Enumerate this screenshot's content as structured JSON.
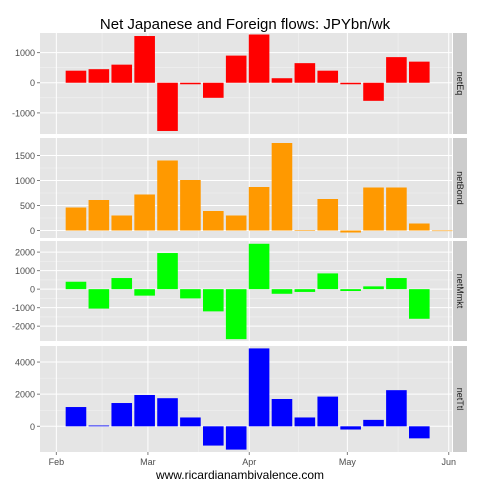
{
  "chart_data": {
    "type": "bar",
    "title": "Net Japanese and Foreign flows: JPYbn/wk",
    "caption": "www.ricardianambivalence.com",
    "x_ticks": [
      {
        "label": "Feb",
        "date": "2013-02-01"
      },
      {
        "label": "Mar",
        "date": "2013-03-01"
      },
      {
        "label": "Apr",
        "date": "2013-04-01"
      },
      {
        "label": "May",
        "date": "2013-05-01"
      },
      {
        "label": "Jun",
        "date": "2013-06-01"
      }
    ],
    "xlim": [
      "2013-01-27",
      "2013-06-02"
    ],
    "panels": [
      {
        "name": "netEq",
        "color": "#ff0000",
        "ylim": [
          -1700,
          1650
        ],
        "yticks": [
          -1000,
          0,
          1000
        ],
        "ytick_labels": [
          "-1000",
          "0",
          "1000"
        ],
        "x": [
          "2013-02-07",
          "2013-02-14",
          "2013-02-21",
          "2013-02-28",
          "2013-03-07",
          "2013-03-14",
          "2013-03-21",
          "2013-03-28",
          "2013-04-04",
          "2013-04-11",
          "2013-04-18",
          "2013-04-25",
          "2013-05-02",
          "2013-05-09",
          "2013-05-16",
          "2013-05-23"
        ],
        "values": [
          400,
          450,
          600,
          1550,
          -1600,
          -50,
          -500,
          900,
          1600,
          150,
          650,
          400,
          -50,
          -600,
          850,
          700
        ]
      },
      {
        "name": "netBond",
        "color": "#ff9900",
        "ylim": [
          -150,
          1850
        ],
        "yticks": [
          0,
          500,
          1000,
          1500
        ],
        "ytick_labels": [
          "0",
          "500",
          "1000",
          "1500"
        ],
        "x": [
          "2013-02-07",
          "2013-02-14",
          "2013-02-21",
          "2013-02-28",
          "2013-03-07",
          "2013-03-14",
          "2013-03-21",
          "2013-03-28",
          "2013-04-04",
          "2013-04-11",
          "2013-04-18",
          "2013-04-25",
          "2013-05-02",
          "2013-05-09",
          "2013-05-16",
          "2013-05-23",
          "2013-05-30"
        ],
        "values": [
          460,
          610,
          300,
          720,
          1400,
          1010,
          390,
          300,
          870,
          1750,
          10,
          630,
          -40,
          860,
          860,
          140,
          0
        ]
      },
      {
        "name": "netMmkt",
        "color": "#00ff00",
        "ylim": [
          -2800,
          2600
        ],
        "yticks": [
          -2000,
          -1000,
          0,
          1000,
          2000
        ],
        "ytick_labels": [
          "-2000",
          "-1000",
          "0",
          "1000",
          "2000"
        ],
        "x": [
          "2013-02-07",
          "2013-02-14",
          "2013-02-21",
          "2013-02-28",
          "2013-03-07",
          "2013-03-14",
          "2013-03-21",
          "2013-03-28",
          "2013-04-04",
          "2013-04-11",
          "2013-04-18",
          "2013-04-25",
          "2013-05-02",
          "2013-05-09",
          "2013-05-16",
          "2013-05-23"
        ],
        "values": [
          400,
          -1050,
          600,
          -350,
          1950,
          -500,
          -1200,
          -2700,
          2450,
          -250,
          -150,
          850,
          -100,
          150,
          600,
          -1600
        ]
      },
      {
        "name": "netTtl",
        "color": "#0000ff",
        "ylim": [
          -1600,
          5000
        ],
        "yticks": [
          0,
          2000,
          4000
        ],
        "ytick_labels": [
          "0",
          "2000",
          "4000"
        ],
        "x": [
          "2013-02-07",
          "2013-02-14",
          "2013-02-21",
          "2013-02-28",
          "2013-03-07",
          "2013-03-14",
          "2013-03-21",
          "2013-03-28",
          "2013-04-04",
          "2013-04-11",
          "2013-04-18",
          "2013-04-25",
          "2013-05-02",
          "2013-05-09",
          "2013-05-16",
          "2013-05-23"
        ],
        "values": [
          1200,
          50,
          1450,
          1950,
          1750,
          550,
          -1200,
          -1450,
          4850,
          1700,
          550,
          1850,
          -200,
          400,
          2250,
          -750
        ]
      }
    ],
    "grid": true,
    "panel_background": "#e5e5e5",
    "strip_background": "#cccccc"
  }
}
